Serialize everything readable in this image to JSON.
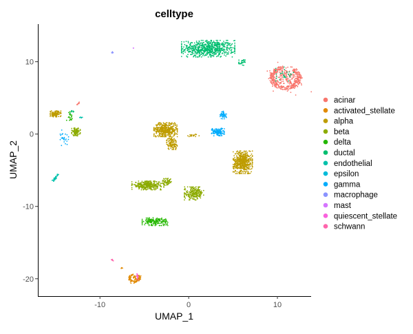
{
  "chart_data": {
    "type": "scatter",
    "title": "celltype",
    "xlabel": "UMAP_1",
    "ylabel": "UMAP_2",
    "xlim": [
      -17,
      13.8
    ],
    "ylim": [
      -22.4,
      15.2
    ],
    "xticks": [
      -10,
      0,
      10
    ],
    "yticks": [
      -20,
      -10,
      0,
      10
    ],
    "grid": false,
    "legend_position": "right",
    "legend": [
      {
        "label": "acinar",
        "color": "#F8766D"
      },
      {
        "label": "activated_stellate",
        "color": "#E18A00"
      },
      {
        "label": "alpha",
        "color": "#BE9C00"
      },
      {
        "label": "beta",
        "color": "#8CAB00"
      },
      {
        "label": "delta",
        "color": "#24B700"
      },
      {
        "label": "ductal",
        "color": "#00BE70"
      },
      {
        "label": "endothelial",
        "color": "#00C1AB"
      },
      {
        "label": "epsilon",
        "color": "#00BBDA"
      },
      {
        "label": "gamma",
        "color": "#00ACFC"
      },
      {
        "label": "macrophage",
        "color": "#8B93FF"
      },
      {
        "label": "mast",
        "color": "#D575FE"
      },
      {
        "label": "quiescent_stellate",
        "color": "#F962DD"
      },
      {
        "label": "schwann",
        "color": "#FF65AC"
      }
    ],
    "clusters": [
      {
        "celltype": "ductal",
        "center": [
          2.2,
          11.8
        ],
        "spread": [
          2.5,
          0.95
        ],
        "n": 650
      },
      {
        "celltype": "ductal",
        "center": [
          6.0,
          9.9
        ],
        "spread": [
          0.3,
          0.35
        ],
        "n": 25
      },
      {
        "celltype": "acinar",
        "center": [
          10.9,
          7.8
        ],
        "spread": [
          1.7,
          1.6
        ],
        "n": 520,
        "shape": "ring"
      },
      {
        "celltype": "ductal",
        "center": [
          10.9,
          8.3
        ],
        "spread": [
          0.9,
          0.8
        ],
        "n": 30
      },
      {
        "celltype": "alpha",
        "center": [
          -2.6,
          0.6
        ],
        "spread": [
          1.1,
          0.8
        ],
        "n": 450
      },
      {
        "celltype": "alpha",
        "center": [
          -1.9,
          -1.3
        ],
        "spread": [
          0.5,
          0.7
        ],
        "n": 120
      },
      {
        "celltype": "alpha",
        "center": [
          6.1,
          -3.9
        ],
        "spread": [
          0.9,
          1.3
        ],
        "n": 550
      },
      {
        "celltype": "alpha",
        "center": [
          -15.0,
          2.8
        ],
        "spread": [
          0.5,
          0.35
        ],
        "n": 120
      },
      {
        "celltype": "alpha",
        "center": [
          0.5,
          -0.2
        ],
        "spread": [
          0.7,
          0.15
        ],
        "n": 20
      },
      {
        "celltype": "beta",
        "center": [
          -12.7,
          0.3
        ],
        "spread": [
          0.4,
          0.45
        ],
        "n": 110
      },
      {
        "celltype": "beta",
        "center": [
          -4.6,
          -7.1
        ],
        "spread": [
          1.5,
          0.5
        ],
        "n": 320
      },
      {
        "celltype": "beta",
        "center": [
          -2.4,
          -6.6
        ],
        "spread": [
          0.4,
          0.4
        ],
        "n": 50
      },
      {
        "celltype": "beta",
        "center": [
          0.6,
          -8.2
        ],
        "spread": [
          0.9,
          0.75
        ],
        "n": 220
      },
      {
        "celltype": "delta",
        "center": [
          -3.8,
          -12.1
        ],
        "spread": [
          1.2,
          0.45
        ],
        "n": 170
      },
      {
        "celltype": "delta",
        "center": [
          -13.4,
          2.5
        ],
        "spread": [
          0.3,
          0.5
        ],
        "n": 20
      },
      {
        "celltype": "gamma",
        "center": [
          3.3,
          0.3
        ],
        "spread": [
          0.6,
          0.45
        ],
        "n": 130
      },
      {
        "celltype": "gamma",
        "center": [
          3.9,
          2.6
        ],
        "spread": [
          0.3,
          0.45
        ],
        "n": 55
      },
      {
        "celltype": "gamma",
        "center": [
          -14.0,
          -0.5
        ],
        "spread": [
          0.4,
          0.9
        ],
        "n": 25
      },
      {
        "celltype": "endothelial",
        "center": [
          -15.0,
          -6.0
        ],
        "spread": [
          0.3,
          0.45
        ],
        "n": 35,
        "shape": "line"
      },
      {
        "celltype": "endothelial",
        "center": [
          -12.1,
          2.3
        ],
        "spread": [
          0.2,
          0.1
        ],
        "n": 6
      },
      {
        "celltype": "ductal",
        "center": [
          -13.2,
          3.1
        ],
        "spread": [
          0.2,
          0.2
        ],
        "n": 8
      },
      {
        "celltype": "acinar",
        "center": [
          -12.5,
          4.2
        ],
        "spread": [
          0.2,
          0.2
        ],
        "n": 8,
        "shape": "line"
      },
      {
        "celltype": "macrophage",
        "center": [
          -8.6,
          11.3
        ],
        "spread": [
          0.1,
          0.15
        ],
        "n": 5
      },
      {
        "celltype": "mast",
        "center": [
          -6.2,
          11.9
        ],
        "spread": [
          0.08,
          0.08
        ],
        "n": 3
      },
      {
        "celltype": "activated_stellate",
        "center": [
          -6.1,
          -19.9
        ],
        "spread": [
          0.65,
          0.55
        ],
        "n": 130,
        "shape": "ring"
      },
      {
        "celltype": "activated_stellate",
        "center": [
          -7.6,
          -18.5
        ],
        "spread": [
          0.12,
          0.1
        ],
        "n": 5
      },
      {
        "celltype": "quiescent_stellate",
        "center": [
          -5.8,
          -19.8
        ],
        "spread": [
          0.15,
          0.4
        ],
        "n": 14
      },
      {
        "celltype": "schwann",
        "center": [
          -8.6,
          -17.4
        ],
        "spread": [
          0.12,
          0.1
        ],
        "n": 5
      }
    ]
  }
}
